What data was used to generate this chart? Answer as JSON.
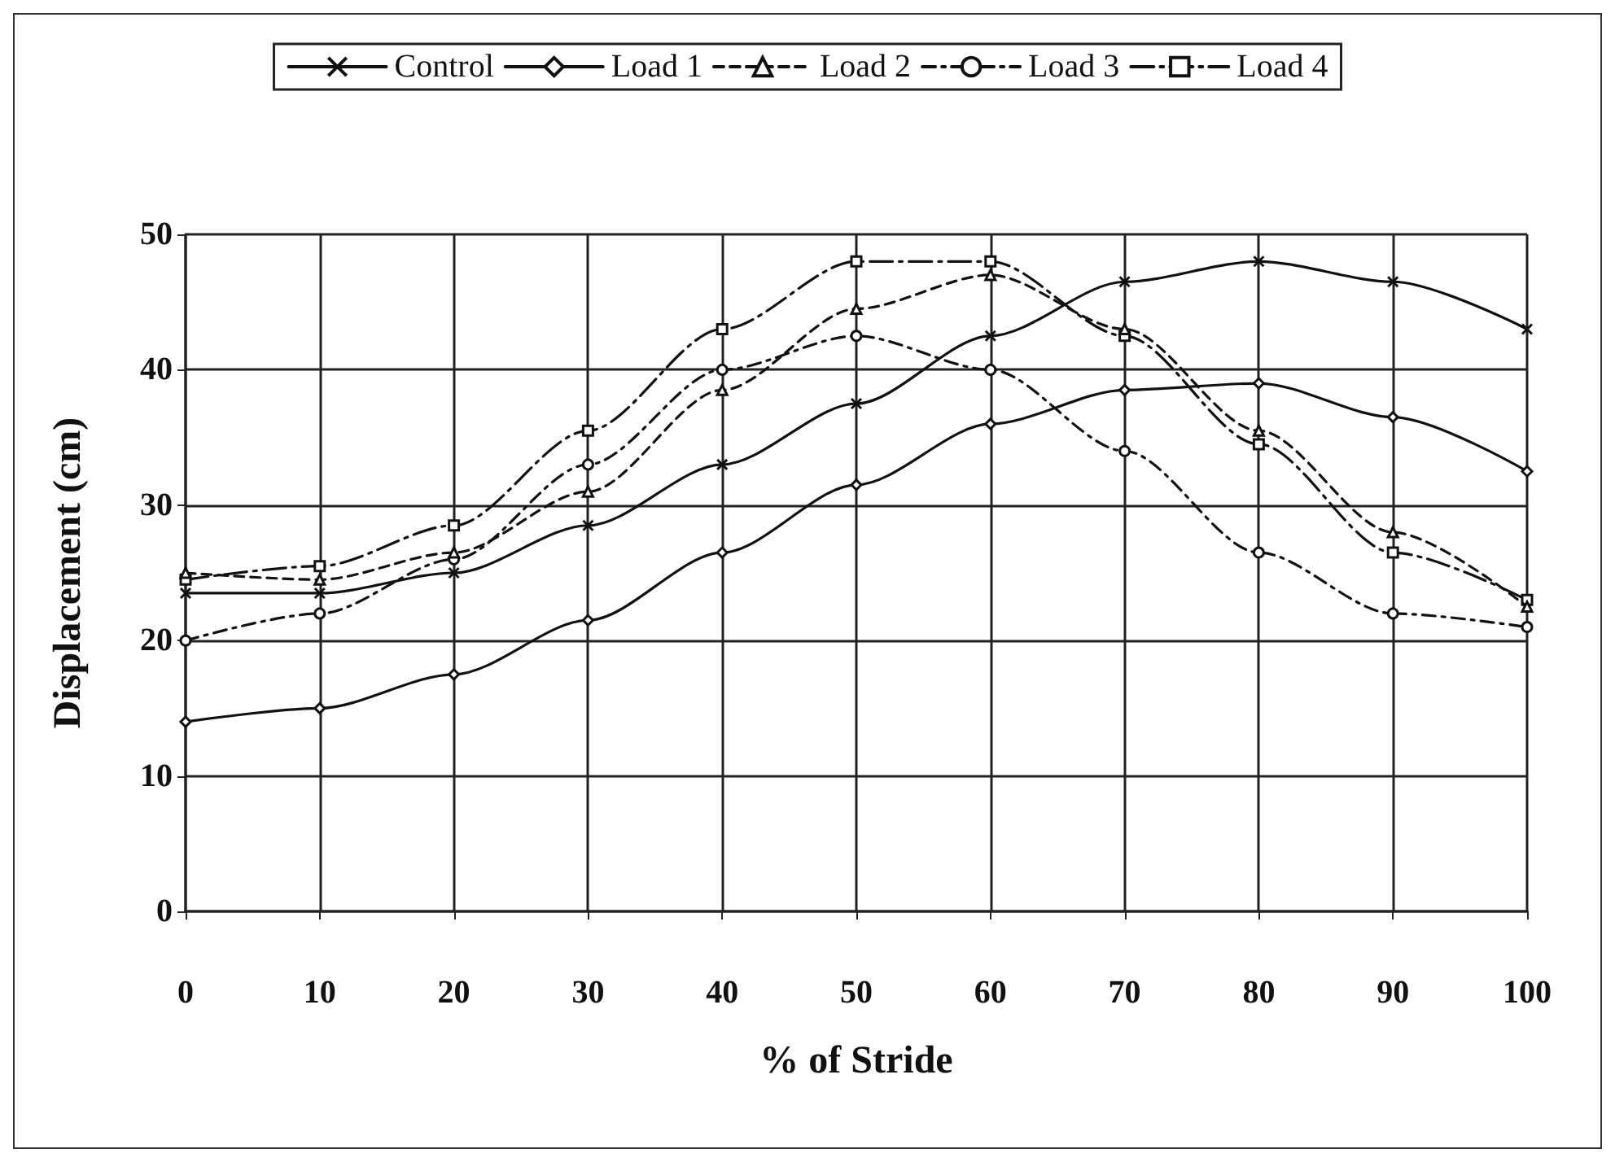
{
  "chart_data": {
    "type": "line",
    "xlabel": "% of Stride",
    "ylabel": "Displacement (cm)",
    "x": [
      0,
      10,
      20,
      30,
      40,
      50,
      60,
      70,
      80,
      90,
      100
    ],
    "xlim": [
      0,
      100
    ],
    "xticks": [
      0,
      10,
      20,
      30,
      40,
      50,
      60,
      70,
      80,
      90,
      100
    ],
    "ylim": [
      0,
      50
    ],
    "yticks": [
      0,
      10,
      20,
      30,
      40,
      50
    ],
    "grid": true,
    "legend": "top",
    "series": [
      {
        "name": "Control",
        "color": "#111111",
        "marker": "cross",
        "line_style": "solid",
        "values": [
          23.5,
          23.5,
          25,
          28.5,
          33,
          37.5,
          42.5,
          46.5,
          48,
          46.5,
          43
        ]
      },
      {
        "name": "Load 1",
        "color": "#111111",
        "marker": "diamond",
        "line_style": "solid",
        "values": [
          14,
          15,
          17.5,
          21.5,
          26.5,
          31.5,
          36,
          38.5,
          39,
          36.5,
          32.5
        ]
      },
      {
        "name": "Load 2",
        "color": "#111111",
        "marker": "triangle",
        "line_style": "dashed",
        "values": [
          25,
          24.5,
          26.5,
          31,
          38.5,
          44.5,
          47,
          43,
          35.5,
          28,
          22.5
        ]
      },
      {
        "name": "Load 3",
        "color": "#111111",
        "marker": "circle",
        "line_style": "dashdot",
        "values": [
          20,
          22,
          26,
          33,
          40,
          42.5,
          40,
          34,
          26.5,
          22,
          21
        ]
      },
      {
        "name": "Load 4",
        "color": "#111111",
        "marker": "square",
        "line_style": "longdashdot",
        "values": [
          24.5,
          25.5,
          28.5,
          35.5,
          43,
          48,
          48,
          42.5,
          34.5,
          26.5,
          23
        ]
      }
    ]
  }
}
